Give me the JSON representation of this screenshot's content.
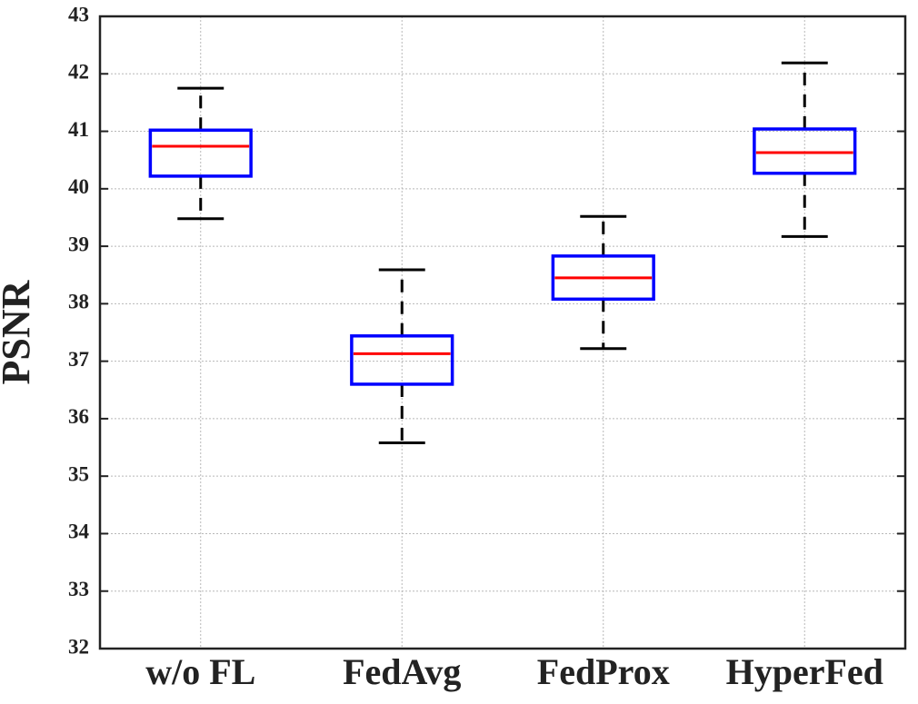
{
  "chart_data": {
    "type": "box",
    "ylabel": "PSNR",
    "categories": [
      "w/o FL",
      "FedAvg",
      "FedProx",
      "HyperFed"
    ],
    "boxes": [
      {
        "whislo": 39.48,
        "q1": 40.22,
        "med": 40.74,
        "q3": 41.02,
        "whishi": 41.75
      },
      {
        "whislo": 35.58,
        "q1": 36.6,
        "med": 37.13,
        "q3": 37.44,
        "whishi": 38.59
      },
      {
        "whislo": 37.22,
        "q1": 38.08,
        "med": 38.45,
        "q3": 38.83,
        "whishi": 39.52
      },
      {
        "whislo": 39.17,
        "q1": 40.27,
        "med": 40.63,
        "q3": 41.04,
        "whishi": 42.19
      }
    ],
    "box_color": "#0000ff",
    "median_color": "#ff0000",
    "whisker_color": "#000000",
    "ylim": [
      32,
      43
    ],
    "yticks": [
      32,
      33,
      34,
      35,
      36,
      37,
      38,
      39,
      40,
      41,
      42,
      43
    ],
    "grid": true
  }
}
